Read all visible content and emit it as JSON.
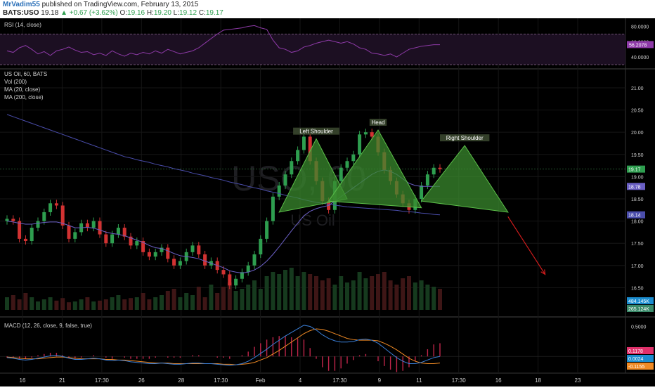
{
  "header": {
    "author": "MrVadim55",
    "published": "published on TradingView.com, February 13, 2015",
    "symbol": "BATS:USO",
    "last": "19.18",
    "change": "+0.67 (+3.62%)",
    "open_label": "O:",
    "open": "19.16",
    "high_label": "H:",
    "high": "19.20",
    "low_label": "L:",
    "low": "19.12",
    "close_label": "C:",
    "close": "19.17"
  },
  "colors": {
    "background": "#000000",
    "up_candle": "#2e9e4f",
    "down_candle": "#d23232",
    "pattern_fill": "#3a8a2e",
    "rsi": "#8e3aa8",
    "ma20": "#6a5fc4",
    "ma200": "#4a4dab",
    "macd": "#3a7fd8",
    "signal": "#f08a24",
    "forecast_arrow": "#d01c1c"
  },
  "watermark": {
    "symbol": "USO, 60",
    "name": "US Oil"
  },
  "chart_data": [
    {
      "type": "line",
      "pane": "RSI",
      "title": "RSI (14, close)",
      "ylim": [
        30,
        85
      ],
      "y_ticks": [
        "80.0000",
        "60.0000",
        "40.0000"
      ],
      "bands": [
        70,
        30
      ],
      "current_value": "56.2078",
      "series": [
        {
          "name": "RSI (14, close)",
          "values": [
            48,
            46,
            52,
            55,
            50,
            44,
            47,
            42,
            48,
            50,
            53,
            49,
            46,
            47,
            43,
            45,
            42,
            48,
            44,
            41,
            45,
            43,
            46,
            44,
            48,
            45,
            50,
            47,
            44,
            46,
            48,
            52,
            58,
            64,
            70,
            75,
            76,
            77,
            78,
            80,
            81,
            78,
            76,
            62,
            52,
            50,
            46,
            48,
            53,
            55,
            58,
            60,
            62,
            60,
            58,
            60,
            57,
            52,
            50,
            45,
            44,
            42,
            44,
            40,
            45,
            50,
            52,
            54,
            55,
            56,
            56
          ]
        }
      ]
    },
    {
      "type": "candlestick",
      "pane": "Price",
      "title": "US Oil, 60, BATS",
      "indicators": [
        "Vol (200)",
        "MA (20, close)",
        "MA (200, close)"
      ],
      "ylim": [
        16.0,
        21.3
      ],
      "y_ticks": [
        "21.00",
        "20.50",
        "20.00",
        "19.50",
        "19.00",
        "18.50",
        "18.00",
        "17.50",
        "17.00",
        "16.50"
      ],
      "x_ticks": [
        "16",
        "21",
        "17:30",
        "26",
        "28",
        "17:30",
        "Feb",
        "4",
        "17:30",
        "9",
        "11",
        "17:30",
        "16",
        "18",
        "23"
      ],
      "price_labels": [
        {
          "name": "last",
          "text": "19.17",
          "value": 19.17,
          "color": "#2e9e4f"
        },
        {
          "name": "ma20",
          "text": "18.78",
          "value": 18.78,
          "color": "#6a5fc4"
        },
        {
          "name": "ma200",
          "text": "18.14",
          "value": 18.14,
          "color": "#4a4dab"
        }
      ],
      "volume_labels": [
        {
          "name": "volume",
          "text": "484.145K",
          "color": "#1a8ccf"
        },
        {
          "name": "volume-ma",
          "text": "265.124K",
          "color": "#3a8a6a"
        }
      ],
      "closes": [
        18.05,
        18.0,
        17.6,
        17.55,
        17.85,
        18.0,
        18.2,
        18.4,
        18.35,
        17.9,
        17.6,
        17.75,
        17.95,
        17.85,
        18.0,
        17.7,
        17.5,
        17.7,
        17.85,
        17.65,
        17.45,
        17.55,
        17.3,
        17.2,
        17.3,
        17.4,
        17.15,
        17.0,
        17.1,
        17.3,
        17.45,
        17.25,
        17.0,
        17.1,
        16.9,
        16.8,
        16.55,
        16.7,
        16.85,
        17.0,
        17.25,
        17.6,
        18.0,
        18.55,
        18.8,
        19.05,
        19.35,
        19.6,
        19.9,
        19.35,
        18.9,
        18.45,
        18.25,
        18.9,
        19.2,
        19.35,
        19.5,
        19.95,
        20.0,
        19.9,
        19.55,
        19.15,
        18.9,
        18.6,
        18.4,
        18.25,
        18.5,
        18.8,
        19.05,
        19.2,
        19.17
      ],
      "ma20": [
        18.0,
        17.98,
        17.95,
        17.93,
        17.93,
        17.95,
        17.97,
        17.98,
        17.98,
        17.95,
        17.9,
        17.85,
        17.85,
        17.86,
        17.84,
        17.8,
        17.75,
        17.72,
        17.7,
        17.67,
        17.62,
        17.57,
        17.52,
        17.45,
        17.4,
        17.38,
        17.33,
        17.27,
        17.22,
        17.2,
        17.18,
        17.15,
        17.1,
        17.05,
        17.0,
        16.95,
        16.88,
        16.85,
        16.83,
        16.85,
        16.9,
        16.98,
        17.1,
        17.25,
        17.42,
        17.6,
        17.78,
        17.95,
        18.12,
        18.22,
        18.28,
        18.32,
        18.35,
        18.45,
        18.55,
        18.65,
        18.75,
        18.85,
        18.95,
        19.05,
        19.12,
        19.15,
        19.12,
        19.05,
        18.95,
        18.85,
        18.8,
        18.78,
        18.78,
        18.78,
        18.78
      ],
      "ma200": [
        20.4,
        20.35,
        20.3,
        20.25,
        20.2,
        20.15,
        20.1,
        20.05,
        20.0,
        19.95,
        19.9,
        19.85,
        19.8,
        19.75,
        19.7,
        19.65,
        19.6,
        19.55,
        19.5,
        19.45,
        19.42,
        19.38,
        19.35,
        19.32,
        19.28,
        19.25,
        19.22,
        19.18,
        19.15,
        19.12,
        19.08,
        19.05,
        19.02,
        18.98,
        18.95,
        18.92,
        18.88,
        18.85,
        18.82,
        18.78,
        18.75,
        18.72,
        18.68,
        18.65,
        18.62,
        18.58,
        18.55,
        18.52,
        18.48,
        18.45,
        18.42,
        18.4,
        18.38,
        18.36,
        18.34,
        18.32,
        18.31,
        18.3,
        18.29,
        18.28,
        18.27,
        18.26,
        18.25,
        18.24,
        18.22,
        18.21,
        18.2,
        18.18,
        18.17,
        18.15,
        18.14
      ],
      "volume": [
        0.3,
        0.35,
        0.25,
        0.4,
        0.3,
        0.2,
        0.25,
        0.3,
        0.22,
        0.28,
        0.18,
        0.2,
        0.25,
        0.3,
        0.2,
        0.22,
        0.25,
        0.3,
        0.35,
        0.25,
        0.28,
        0.3,
        0.4,
        0.25,
        0.3,
        0.35,
        0.45,
        0.5,
        0.3,
        0.4,
        0.35,
        0.55,
        0.3,
        0.6,
        0.4,
        0.55,
        0.65,
        0.45,
        0.5,
        0.6,
        0.7,
        0.5,
        0.8,
        0.9,
        0.85,
        0.95,
        1.0,
        0.8,
        0.9,
        0.85,
        0.8,
        0.7,
        0.75,
        0.6,
        0.8,
        0.65,
        0.7,
        0.9,
        0.75,
        0.8,
        0.85,
        0.9,
        0.7,
        0.6,
        0.75,
        0.8,
        0.65,
        0.7,
        0.6,
        0.55,
        0.5
      ],
      "annotations": [
        {
          "name": "left-shoulder",
          "text": "Left Shoulder",
          "triangle": [
            [
              44,
              18.2
            ],
            [
              50,
              19.85
            ],
            [
              55,
              18.5
            ]
          ]
        },
        {
          "name": "head",
          "text": "Head",
          "triangle": [
            [
              52,
              18.45
            ],
            [
              60,
              20.05
            ],
            [
              67,
              18.3
            ]
          ]
        },
        {
          "name": "right-shoulder",
          "text": "Right Shoulder",
          "triangle": [
            [
              67,
              18.45
            ],
            [
              74,
              19.7
            ],
            [
              81,
              18.2
            ]
          ]
        }
      ],
      "forecast": {
        "from": [
          81,
          18.1
        ],
        "to": [
          87,
          16.8
        ]
      }
    },
    {
      "type": "line",
      "pane": "MACD",
      "title": "MACD (12, 26, close, 9, false, true)",
      "ylim": [
        -0.22,
        0.6
      ],
      "y_ticks": [
        "0.5000"
      ],
      "value_labels": [
        {
          "name": "histogram",
          "text": "0.1178",
          "color": "#e0306a"
        },
        {
          "name": "macd",
          "text": "0.0024",
          "color": "#1a8ccf"
        },
        {
          "name": "signal",
          "text": "-0.1155",
          "color": "#f08a24"
        }
      ],
      "series": [
        {
          "name": "MACD",
          "values": [
            -0.02,
            -0.03,
            -0.05,
            -0.06,
            -0.05,
            -0.03,
            -0.01,
            0.01,
            0.02,
            0.0,
            -0.03,
            -0.05,
            -0.05,
            -0.04,
            -0.03,
            -0.04,
            -0.06,
            -0.07,
            -0.06,
            -0.07,
            -0.09,
            -0.1,
            -0.11,
            -0.12,
            -0.12,
            -0.11,
            -0.12,
            -0.13,
            -0.13,
            -0.12,
            -0.11,
            -0.11,
            -0.12,
            -0.12,
            -0.13,
            -0.14,
            -0.15,
            -0.14,
            -0.12,
            -0.08,
            -0.02,
            0.05,
            0.12,
            0.2,
            0.27,
            0.34,
            0.4,
            0.46,
            0.52,
            0.5,
            0.44,
            0.36,
            0.3,
            0.26,
            0.24,
            0.24,
            0.25,
            0.28,
            0.29,
            0.27,
            0.22,
            0.14,
            0.06,
            -0.02,
            -0.08,
            -0.12,
            -0.12,
            -0.1,
            -0.06,
            -0.02,
            0.0
          ]
        },
        {
          "name": "Signal",
          "values": [
            -0.01,
            -0.02,
            -0.03,
            -0.04,
            -0.04,
            -0.04,
            -0.03,
            -0.02,
            -0.01,
            -0.01,
            -0.02,
            -0.03,
            -0.04,
            -0.04,
            -0.04,
            -0.04,
            -0.05,
            -0.05,
            -0.06,
            -0.06,
            -0.07,
            -0.08,
            -0.09,
            -0.1,
            -0.11,
            -0.11,
            -0.11,
            -0.12,
            -0.12,
            -0.12,
            -0.12,
            -0.12,
            -0.12,
            -0.12,
            -0.12,
            -0.13,
            -0.13,
            -0.14,
            -0.13,
            -0.12,
            -0.1,
            -0.06,
            -0.02,
            0.04,
            0.1,
            0.17,
            0.24,
            0.31,
            0.38,
            0.43,
            0.46,
            0.45,
            0.42,
            0.38,
            0.34,
            0.3,
            0.28,
            0.27,
            0.27,
            0.27,
            0.26,
            0.22,
            0.17,
            0.11,
            0.04,
            -0.03,
            -0.08,
            -0.11,
            -0.12,
            -0.12,
            -0.11
          ]
        }
      ]
    }
  ]
}
